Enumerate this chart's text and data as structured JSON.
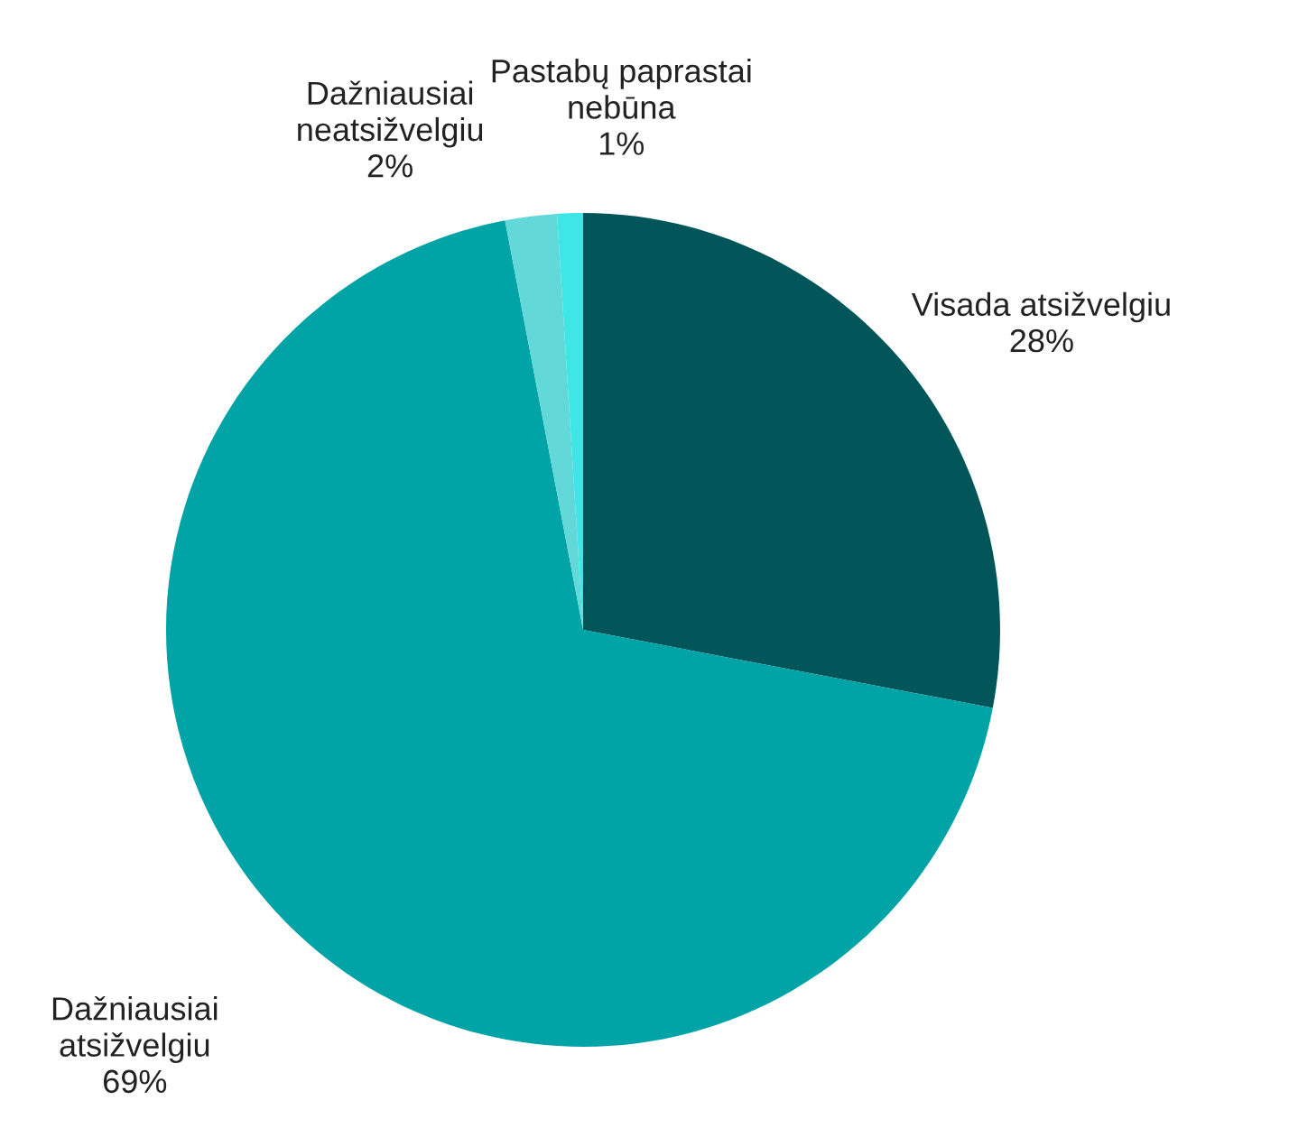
{
  "chart_data": {
    "type": "pie",
    "categories": [
      "Visada atsižvelgiu",
      "Dažniausiai\natsižvelgiu",
      "Dažniausiai\nneatsižvelgiu",
      "Pastabų paprastai\nnebūna"
    ],
    "values": [
      28,
      69,
      2,
      1
    ],
    "colors": [
      "#02565a",
      "#00a4a6",
      "#63d8d8",
      "#3ee6e6"
    ],
    "value_labels": [
      "28%",
      "69%",
      "2%",
      "1%"
    ],
    "legend": false
  }
}
